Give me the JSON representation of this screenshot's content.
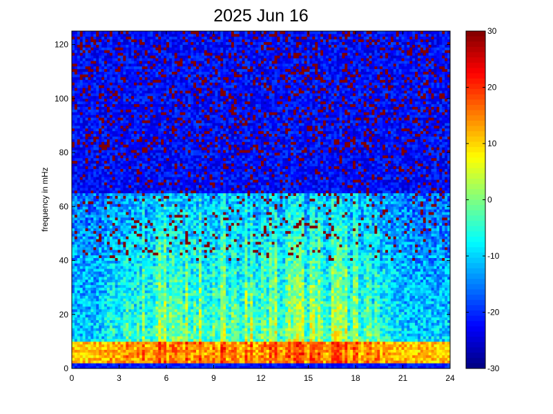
{
  "chart_data": {
    "type": "heatmap",
    "title": "2025 Jun 16",
    "xlabel": "",
    "ylabel": "frequency in mHz",
    "xlim": [
      0,
      24
    ],
    "ylim": [
      0,
      125
    ],
    "x_ticks": [
      "0",
      "3",
      "6",
      "9",
      "12",
      "15",
      "18",
      "21",
      "24"
    ],
    "y_ticks": [
      "0",
      "20",
      "40",
      "60",
      "80",
      "100",
      "120"
    ],
    "colorbar": {
      "range": [
        -30,
        30
      ],
      "ticks": [
        "30",
        "20",
        "10",
        "0",
        "-10",
        "-20",
        "-30"
      ],
      "colormap": "jet"
    },
    "grid": {
      "time_bins": 140,
      "freq_bins": 125,
      "time_step_hours": 0.171,
      "freq_step_mhz": 1
    },
    "spectral_model": {
      "description_of_visible_bands": [
        {
          "freq_range_mhz": [
            0,
            2
          ],
          "level_db": -24
        },
        {
          "freq_range_mhz": [
            2,
            10
          ],
          "level_db": 16
        },
        {
          "freq_range_mhz": [
            10,
            60
          ],
          "level_db": -6
        },
        {
          "freq_range_mhz": [
            60,
            125
          ],
          "level_db": -25
        }
      ],
      "active_hours": [
        5.5,
        17.5
      ],
      "peak_band_level_db": 28
    }
  }
}
